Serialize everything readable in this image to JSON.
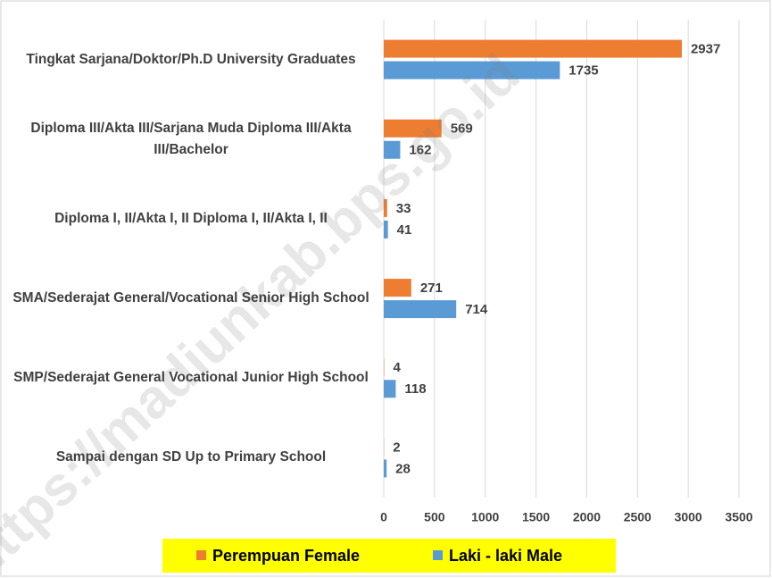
{
  "chart_data": {
    "type": "hbar",
    "categories": [
      "Tingkat Sarjana/Doktor/Ph.D  University Graduates",
      "Diploma III/Akta III/Sarjana Muda Diploma III/Akta III/Bachelor",
      "Diploma I, II/Akta I, II  Diploma I, II/Akta I, II",
      "SMA/Sederajat General/Vocational Senior High School",
      "SMP/Sederajat  General Vocational Junior High School",
      "Sampai dengan SD Up to Primary School"
    ],
    "series": [
      {
        "name": "Perempuan Female",
        "color": "#ed7d31",
        "values": [
          2937,
          569,
          33,
          271,
          4,
          2
        ]
      },
      {
        "name": "Laki - laki  Male",
        "color": "#5b9bd5",
        "values": [
          1735,
          162,
          41,
          714,
          118,
          28
        ]
      }
    ],
    "xlim": [
      0,
      3500
    ],
    "xticks": [
      0,
      500,
      1000,
      1500,
      2000,
      2500,
      3000,
      3500
    ],
    "grid": true,
    "legend": "bottom",
    "watermark": "https://madiunkab.bps.go.id"
  }
}
